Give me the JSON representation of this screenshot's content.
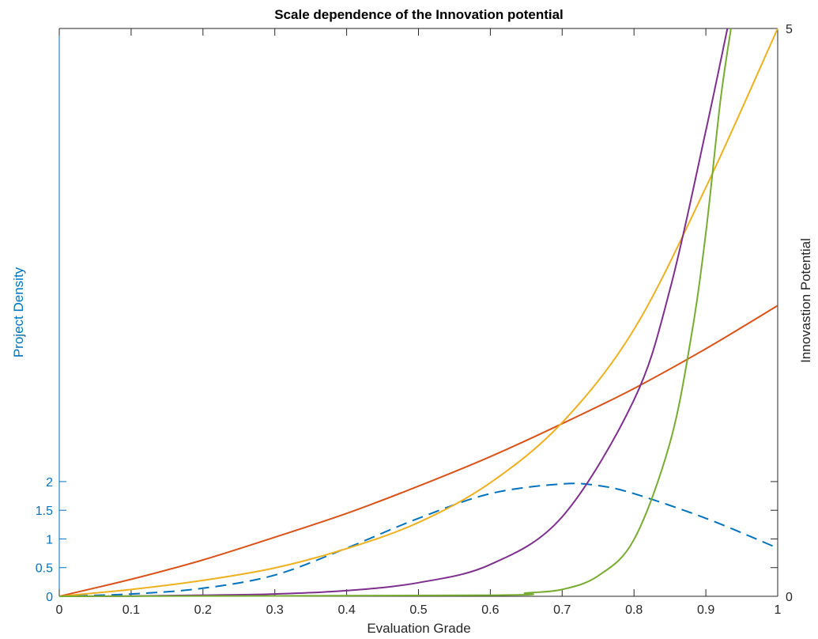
{
  "chart_data": {
    "type": "line",
    "title": "Scale dependence of the Innovation potential",
    "xlabel": "Evaluation Grade",
    "ylabel_left": "Project Density",
    "ylabel_right": "Innovastion Potential",
    "xlim": [
      0,
      1
    ],
    "ylim_left": [
      0,
      9.9
    ],
    "ylim_right": [
      0,
      5
    ],
    "x_ticks": [
      "0",
      "0.1",
      "0.2",
      "0.3",
      "0.4",
      "0.5",
      "0.6",
      "0.7",
      "0.8",
      "0.9",
      "1"
    ],
    "y_left_ticks": [
      "0",
      "0.5",
      "1",
      "1.5",
      "2"
    ],
    "y_right_ticks": [
      "0",
      "5"
    ],
    "grid": false,
    "colors": {
      "left_axis": "#0072bd",
      "right_axis": "#000000",
      "density": "#0072bd",
      "potential_1": "#d95319",
      "potential_2": "#edb120",
      "potential_3": "#7e2f8e",
      "potential_4": "#77ac30"
    },
    "series": [
      {
        "axis": "left",
        "style": "dashed",
        "x": [
          0,
          0.1,
          0.2,
          0.3,
          0.4,
          0.5,
          0.6,
          0.7,
          0.75,
          0.8,
          0.9,
          1.0
        ],
        "y": [
          0.0,
          0.04,
          0.14,
          0.37,
          0.84,
          1.36,
          1.79,
          1.96,
          1.93,
          1.79,
          1.36,
          0.84
        ]
      },
      {
        "axis": "right",
        "style": "solid",
        "x": [
          0,
          0.1,
          0.2,
          0.3,
          0.4,
          0.5,
          0.6,
          0.7,
          0.8,
          0.9,
          1.0
        ],
        "y": [
          0.0,
          0.15,
          0.32,
          0.52,
          0.73,
          0.97,
          1.23,
          1.52,
          1.83,
          2.18,
          2.56
        ]
      },
      {
        "axis": "right",
        "style": "solid",
        "x": [
          0,
          0.1,
          0.2,
          0.3,
          0.4,
          0.5,
          0.6,
          0.7,
          0.8,
          0.9,
          1.0
        ],
        "y": [
          0.0,
          0.06,
          0.14,
          0.25,
          0.42,
          0.65,
          1.0,
          1.53,
          2.35,
          3.6,
          5.0
        ]
      },
      {
        "axis": "right",
        "style": "solid",
        "x": [
          0,
          0.1,
          0.2,
          0.3,
          0.4,
          0.5,
          0.6,
          0.7,
          0.8,
          0.85,
          0.9,
          0.93
        ],
        "y": [
          0.0,
          0.002,
          0.01,
          0.02,
          0.05,
          0.12,
          0.28,
          0.7,
          1.73,
          2.7,
          4.1,
          5.0
        ]
      },
      {
        "axis": "right",
        "style": "solid",
        "x": [
          0,
          0.6,
          0.65,
          0.7,
          0.75,
          0.8,
          0.85,
          0.88,
          0.9,
          0.92,
          0.935
        ],
        "y": [
          0.0,
          0.01,
          0.03,
          0.06,
          0.18,
          0.5,
          1.35,
          2.3,
          3.2,
          4.35,
          5.0
        ]
      }
    ]
  }
}
